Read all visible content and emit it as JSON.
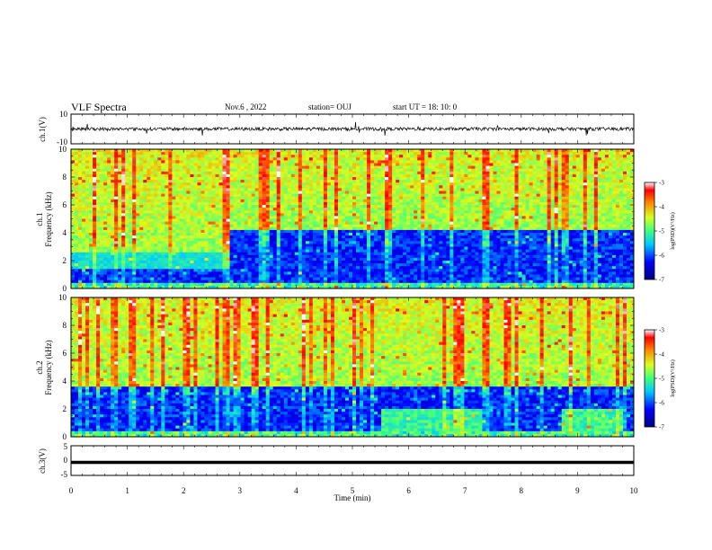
{
  "header": {
    "title": "VLF Spectra",
    "date": "Nov.6 , 2022",
    "station": "station= OUJ",
    "start": "start UT = 18: 10: 0"
  },
  "chart_data": [
    {
      "type": "line",
      "name_label": "ch.1(V)",
      "ylabel": "ch.1(V)",
      "ylim": [
        -10,
        10
      ],
      "yticks": [
        "10",
        "-10"
      ],
      "x": [
        0,
        10
      ],
      "baseline": 0,
      "xlim": [
        0,
        10
      ]
    },
    {
      "type": "heatmap",
      "ylabel": "ch.1\nFrequency (kHz)",
      "ylabel_lines": [
        "ch.1",
        "Frequency (kHz)"
      ],
      "ylim": [
        0,
        10
      ],
      "yticks": [
        "0",
        "2",
        "4",
        "6",
        "8",
        "10"
      ],
      "xlim": [
        0,
        10
      ],
      "colorbar": {
        "label": "log(PSD)(V²/Hz)",
        "ticks": [
          "-3",
          "-4",
          "-5",
          "-6",
          "-7"
        ],
        "range": [
          -7,
          -3
        ]
      }
    },
    {
      "type": "heatmap",
      "ylabel": "ch.2\nFrequency (kHz)",
      "ylabel_lines": [
        "ch.2",
        "Frequency (kHz)"
      ],
      "ylim": [
        0,
        10
      ],
      "yticks": [
        "0",
        "2",
        "4",
        "6",
        "8",
        "10"
      ],
      "xlim": [
        0,
        10
      ],
      "colorbar": {
        "label": "log(PSD)(V²/Hz)",
        "ticks": [
          "-3",
          "-4",
          "-5",
          "-6",
          "-7"
        ],
        "range": [
          -7,
          -3
        ]
      }
    },
    {
      "type": "line",
      "ylabel": "ch.3(V)",
      "ylim": [
        -5,
        5
      ],
      "yticks": [
        "5",
        "0",
        "-5"
      ],
      "x": [
        0,
        10
      ],
      "values": [
        -0.6,
        -0.6
      ],
      "xlim": [
        0,
        10
      ]
    }
  ],
  "xaxis": {
    "label": "Time (min)",
    "ticks": [
      "0",
      "1",
      "2",
      "3",
      "4",
      "5",
      "6",
      "7",
      "8",
      "9",
      "10"
    ]
  },
  "colors": {
    "axis": "#000000",
    "background": "#ffffff"
  }
}
